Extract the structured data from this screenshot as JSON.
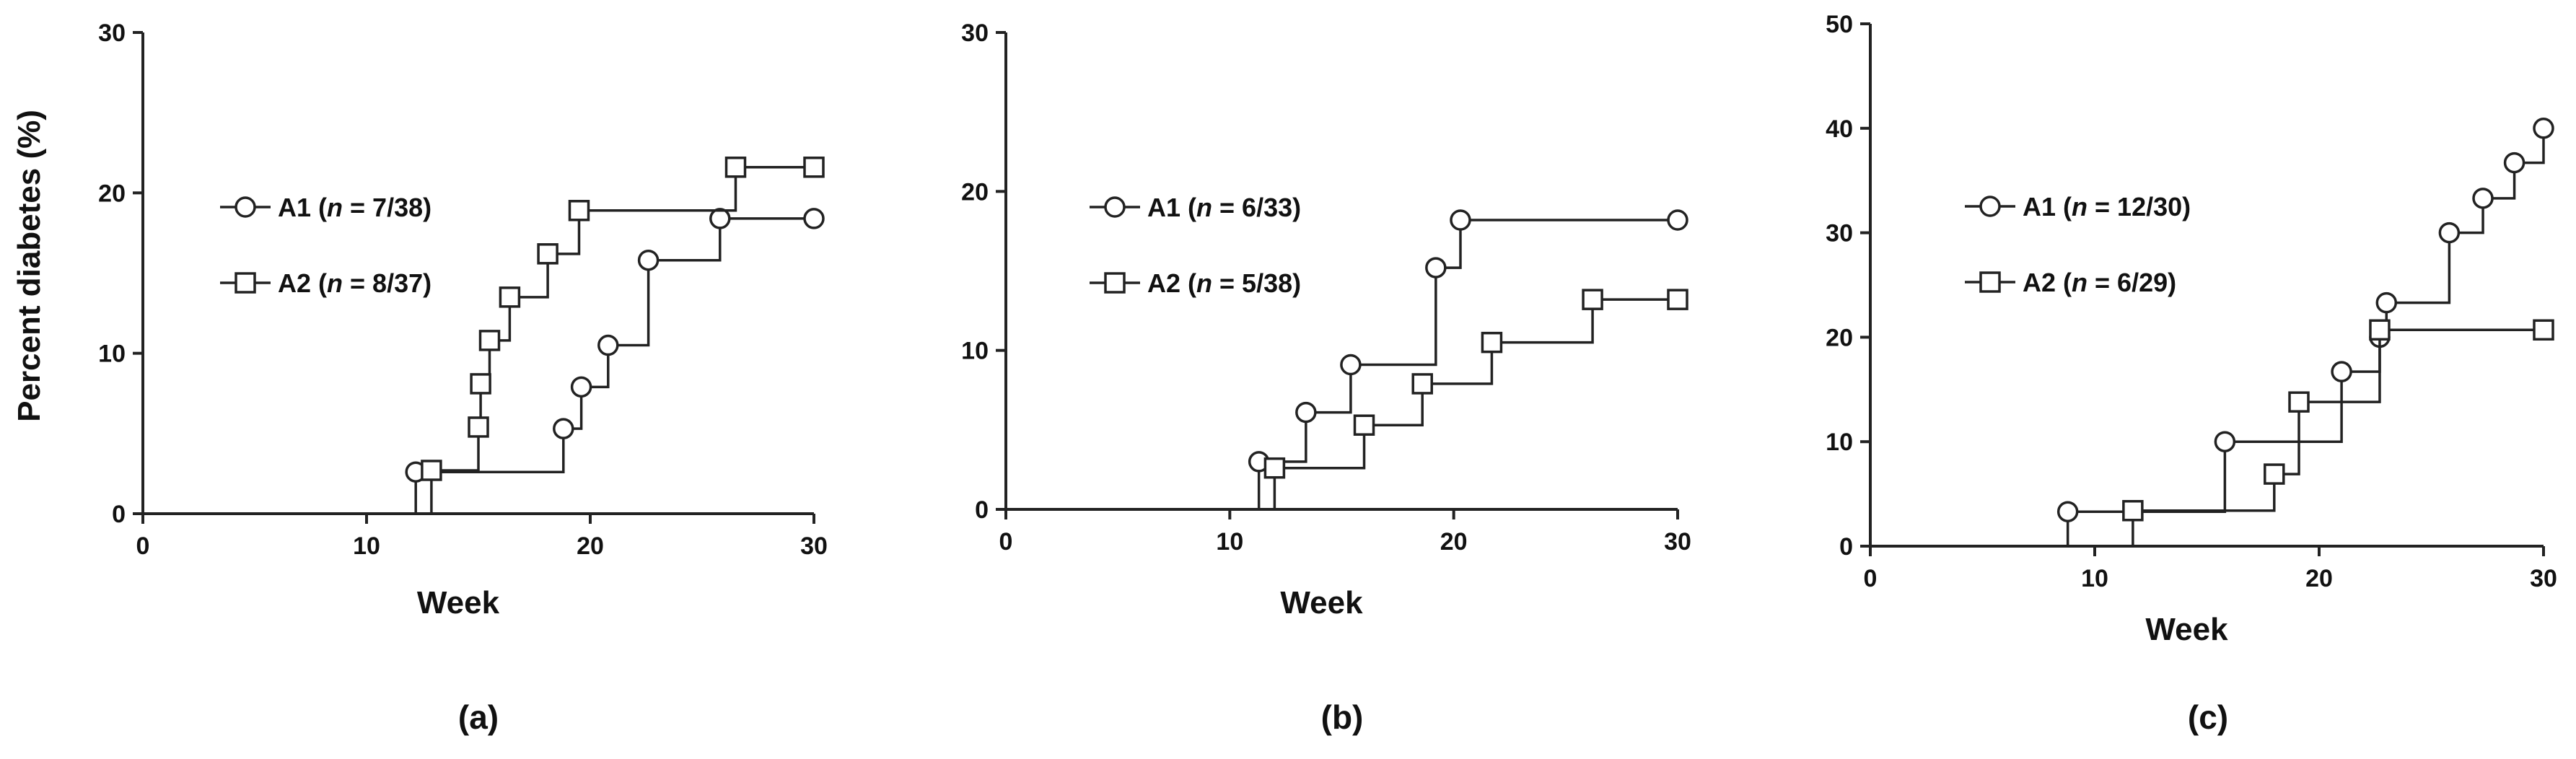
{
  "chart_data": [
    {
      "type": "line",
      "panel_label": "(a)",
      "xlabel": "Week",
      "ylabel": "Percent diabetes (%)",
      "xlim": [
        0,
        30
      ],
      "ylim": [
        0,
        30
      ],
      "xticks": [
        "0",
        "10",
        "20",
        "30"
      ],
      "yticks": [
        "0",
        "10",
        "20",
        "30"
      ],
      "legend_position": "left",
      "series": [
        {
          "name": "A1",
          "n": "7/38",
          "legend_prefix": "A1 (",
          "legend_n_symbol": "n",
          "legend_suffix": " = 7/38)",
          "marker": "circle",
          "steps": [
            [
              12.2,
              2.6
            ],
            [
              18.8,
              5.3
            ],
            [
              19.6,
              7.9
            ],
            [
              20.8,
              10.5
            ],
            [
              22.6,
              15.8
            ],
            [
              25.8,
              18.4
            ]
          ],
          "end_x": 30
        },
        {
          "name": "A2",
          "n": "8/37",
          "legend_prefix": "A2 (",
          "legend_n_symbol": "n",
          "legend_suffix": " = 8/37)",
          "marker": "square",
          "steps": [
            [
              12.9,
              2.7
            ],
            [
              15.0,
              5.4
            ],
            [
              15.1,
              8.1
            ],
            [
              15.5,
              10.8
            ],
            [
              16.4,
              13.5
            ],
            [
              18.1,
              16.2
            ],
            [
              19.5,
              18.9
            ],
            [
              26.5,
              21.6
            ]
          ],
          "end_x": 30
        }
      ]
    },
    {
      "type": "line",
      "panel_label": "(b)",
      "xlabel": "Week",
      "ylabel": "",
      "xlim": [
        0,
        30
      ],
      "ylim": [
        0,
        30
      ],
      "xticks": [
        "0",
        "10",
        "20",
        "30"
      ],
      "yticks": [
        "0",
        "10",
        "20",
        "30"
      ],
      "legend_position": "left",
      "series": [
        {
          "name": "A1",
          "n": "6/33",
          "legend_prefix": "A1 (",
          "legend_n_symbol": "n",
          "legend_suffix": " = 6/33)",
          "marker": "circle",
          "steps": [
            [
              11.3,
              3.0
            ],
            [
              13.4,
              6.1
            ],
            [
              15.4,
              9.1
            ],
            [
              19.2,
              15.2
            ],
            [
              20.3,
              18.2
            ]
          ],
          "end_x": 30
        },
        {
          "name": "A2",
          "n": "5/38",
          "legend_prefix": "A2 (",
          "legend_n_symbol": "n",
          "legend_suffix": " = 5/38)",
          "marker": "square",
          "steps": [
            [
              12.0,
              2.6
            ],
            [
              16.0,
              5.3
            ],
            [
              18.6,
              7.9
            ],
            [
              21.7,
              10.5
            ],
            [
              26.2,
              13.2
            ]
          ],
          "end_x": 30
        }
      ]
    },
    {
      "type": "line",
      "panel_label": "(c)",
      "xlabel": "Week",
      "ylabel": "",
      "xlim": [
        0,
        30
      ],
      "ylim": [
        0,
        50
      ],
      "xticks": [
        "0",
        "10",
        "20",
        "30"
      ],
      "yticks": [
        "0",
        "10",
        "20",
        "30",
        "40",
        "50"
      ],
      "legend_position": "left",
      "series": [
        {
          "name": "A1",
          "n": "12/30",
          "legend_prefix": "A1 (",
          "legend_n_symbol": "n",
          "legend_suffix": " = 12/30)",
          "marker": "circle",
          "steps": [
            [
              8.8,
              3.3
            ],
            [
              15.8,
              10.0
            ],
            [
              21.0,
              16.7
            ],
            [
              22.7,
              20.0
            ],
            [
              23.0,
              23.3
            ],
            [
              25.8,
              30.0
            ],
            [
              27.3,
              33.3
            ],
            [
              28.7,
              36.7
            ],
            [
              30.0,
              40.0
            ]
          ],
          "end_x": 30
        },
        {
          "name": "A2",
          "n": "6/29",
          "legend_prefix": "A2 (",
          "legend_n_symbol": "n",
          "legend_suffix": " = 6/29)",
          "marker": "square",
          "steps": [
            [
              11.7,
              3.4
            ],
            [
              18.0,
              6.9
            ],
            [
              19.1,
              13.8
            ],
            [
              22.7,
              20.7
            ]
          ],
          "end_x": 30
        }
      ]
    }
  ]
}
